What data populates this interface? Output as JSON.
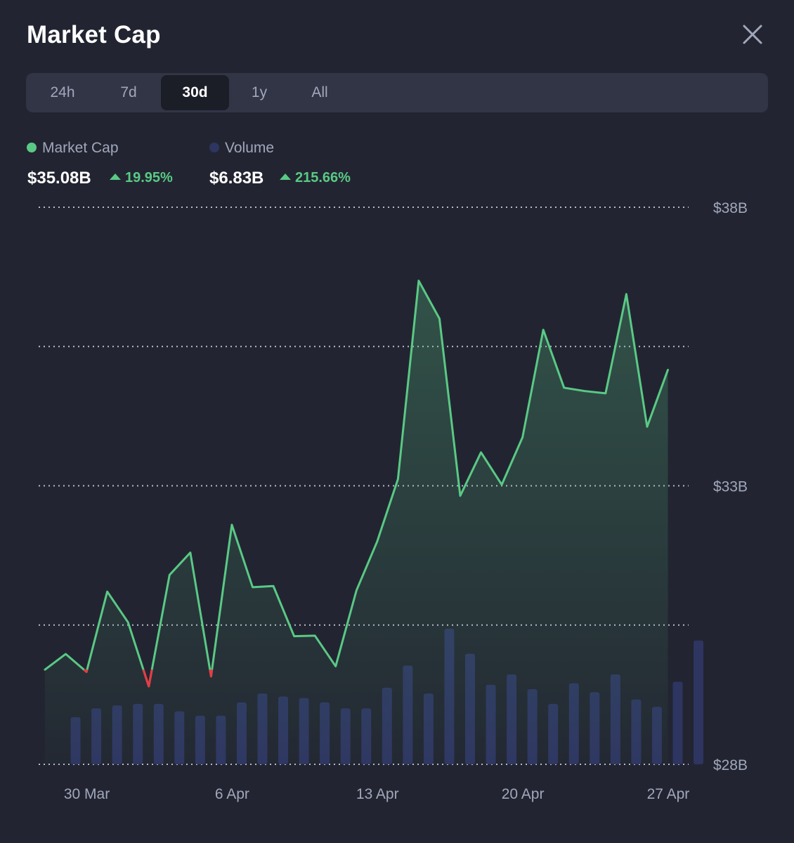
{
  "header": {
    "title": "Market Cap"
  },
  "tabs": [
    {
      "label": "24h",
      "active": false
    },
    {
      "label": "7d",
      "active": false
    },
    {
      "label": "30d",
      "active": true
    },
    {
      "label": "1y",
      "active": false
    },
    {
      "label": "All",
      "active": false
    }
  ],
  "legend": {
    "market_cap": {
      "label": "Market Cap",
      "value": "$35.08B",
      "change": "19.95%",
      "color": "#5ac985"
    },
    "volume": {
      "label": "Volume",
      "value": "$6.83B",
      "change": "215.66%",
      "color": "#2e3561"
    }
  },
  "colors": {
    "positive": "#5ac985",
    "negative": "#ea3943",
    "volume_bar": "#2e3561",
    "grid": "#c9cdd6"
  },
  "chart_data": {
    "type": "line",
    "x_unit": "date",
    "y_axis": {
      "min": 28,
      "max": 38,
      "unit": "B USD",
      "ticks": [
        {
          "value": 38,
          "label": "$38B"
        },
        {
          "value": 33,
          "label": "$33B"
        },
        {
          "value": 28,
          "label": "$28B"
        }
      ],
      "gridlines": [
        28,
        30.5,
        33,
        35.5,
        38
      ]
    },
    "x_axis": {
      "ticks": [
        {
          "date": "30 Mar",
          "label": "30 Mar"
        },
        {
          "date": "6 Apr",
          "label": "6 Apr"
        },
        {
          "date": "13 Apr",
          "label": "13 Apr"
        },
        {
          "date": "20 Apr",
          "label": "20 Apr"
        },
        {
          "date": "27 Apr",
          "label": "27 Apr"
        }
      ]
    },
    "series": [
      {
        "name": "Market Cap",
        "color": "#5ac985",
        "dates": [
          "29 Mar",
          "30 Mar",
          "31 Mar",
          "1 Apr",
          "2 Apr",
          "3 Apr",
          "4 Apr",
          "5 Apr",
          "6 Apr",
          "7 Apr",
          "8 Apr",
          "9 Apr",
          "10 Apr",
          "11 Apr",
          "12 Apr",
          "13 Apr",
          "14 Apr",
          "15 Apr",
          "16 Apr",
          "17 Apr",
          "18 Apr",
          "19 Apr",
          "20 Apr",
          "21 Apr",
          "22 Apr",
          "23 Apr",
          "24 Apr",
          "25 Apr",
          "26 Apr",
          "27 Apr",
          "28 Apr",
          "29 Apr"
        ],
        "values": [
          29.7,
          29.98,
          29.66,
          31.1,
          30.55,
          29.4,
          31.4,
          31.8,
          29.58,
          32.3,
          31.18,
          31.2,
          30.3,
          30.31,
          29.76,
          31.12,
          32.0,
          33.12,
          36.68,
          36.0,
          32.82,
          33.6,
          33.02,
          33.87,
          35.8,
          34.76,
          34.7,
          34.66,
          36.44,
          34.06,
          35.08,
          35.08
        ]
      },
      {
        "name": "Volume",
        "color": "#2e3561",
        "type": "bar",
        "dates": [
          "30 Mar",
          "31 Mar",
          "1 Apr",
          "2 Apr",
          "3 Apr",
          "4 Apr",
          "5 Apr",
          "6 Apr",
          "7 Apr",
          "8 Apr",
          "9 Apr",
          "10 Apr",
          "11 Apr",
          "12 Apr",
          "13 Apr",
          "14 Apr",
          "15 Apr",
          "16 Apr",
          "17 Apr",
          "18 Apr",
          "19 Apr",
          "20 Apr",
          "21 Apr",
          "22 Apr",
          "23 Apr",
          "24 Apr",
          "25 Apr",
          "26 Apr",
          "27 Apr",
          "28 Apr",
          "29 Apr"
        ],
        "values": [
          3.2,
          3.8,
          4.0,
          4.1,
          4.1,
          3.6,
          3.3,
          3.3,
          4.2,
          4.8,
          4.6,
          4.5,
          4.2,
          3.8,
          3.8,
          5.2,
          6.7,
          4.8,
          9.2,
          7.5,
          5.4,
          6.1,
          5.1,
          4.1,
          5.5,
          4.9,
          6.1,
          4.4,
          3.9,
          5.6,
          8.4
        ]
      }
    ]
  }
}
